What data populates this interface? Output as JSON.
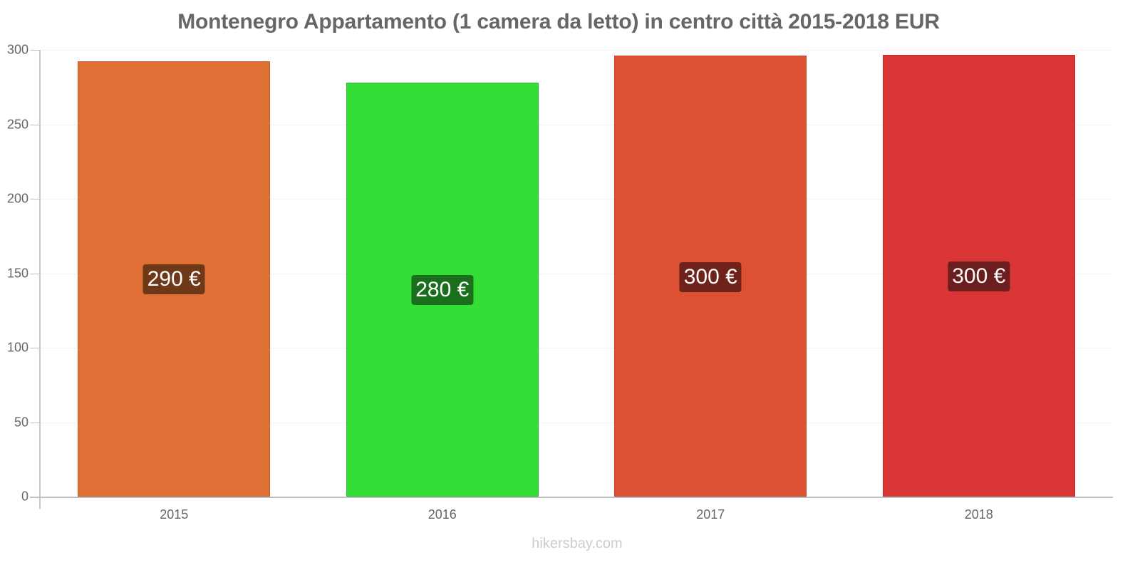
{
  "chart_data": {
    "type": "bar",
    "title": "Montenegro Appartamento (1 camera da letto) in centro città 2015-2018 EUR",
    "xlabel": "",
    "ylabel": "",
    "ylim": [
      0,
      300
    ],
    "yticks": [
      "0",
      "50",
      "100",
      "150",
      "200",
      "250",
      "300"
    ],
    "categories": [
      "2015",
      "2016",
      "2017",
      "2018"
    ],
    "values": [
      292.5,
      278,
      296,
      296.5
    ],
    "data_labels": [
      "290 €",
      "280 €",
      "300 €",
      "300 €"
    ],
    "bar_colors": [
      "#de7035",
      "#35dd37",
      "#dc5034",
      "#d93535"
    ],
    "label_bg_colors": [
      "#6f3818",
      "#1b6e1b",
      "#6e2219",
      "#6c1e1e"
    ],
    "grid": true,
    "legend": null
  },
  "watermark": "hikersbay.com"
}
